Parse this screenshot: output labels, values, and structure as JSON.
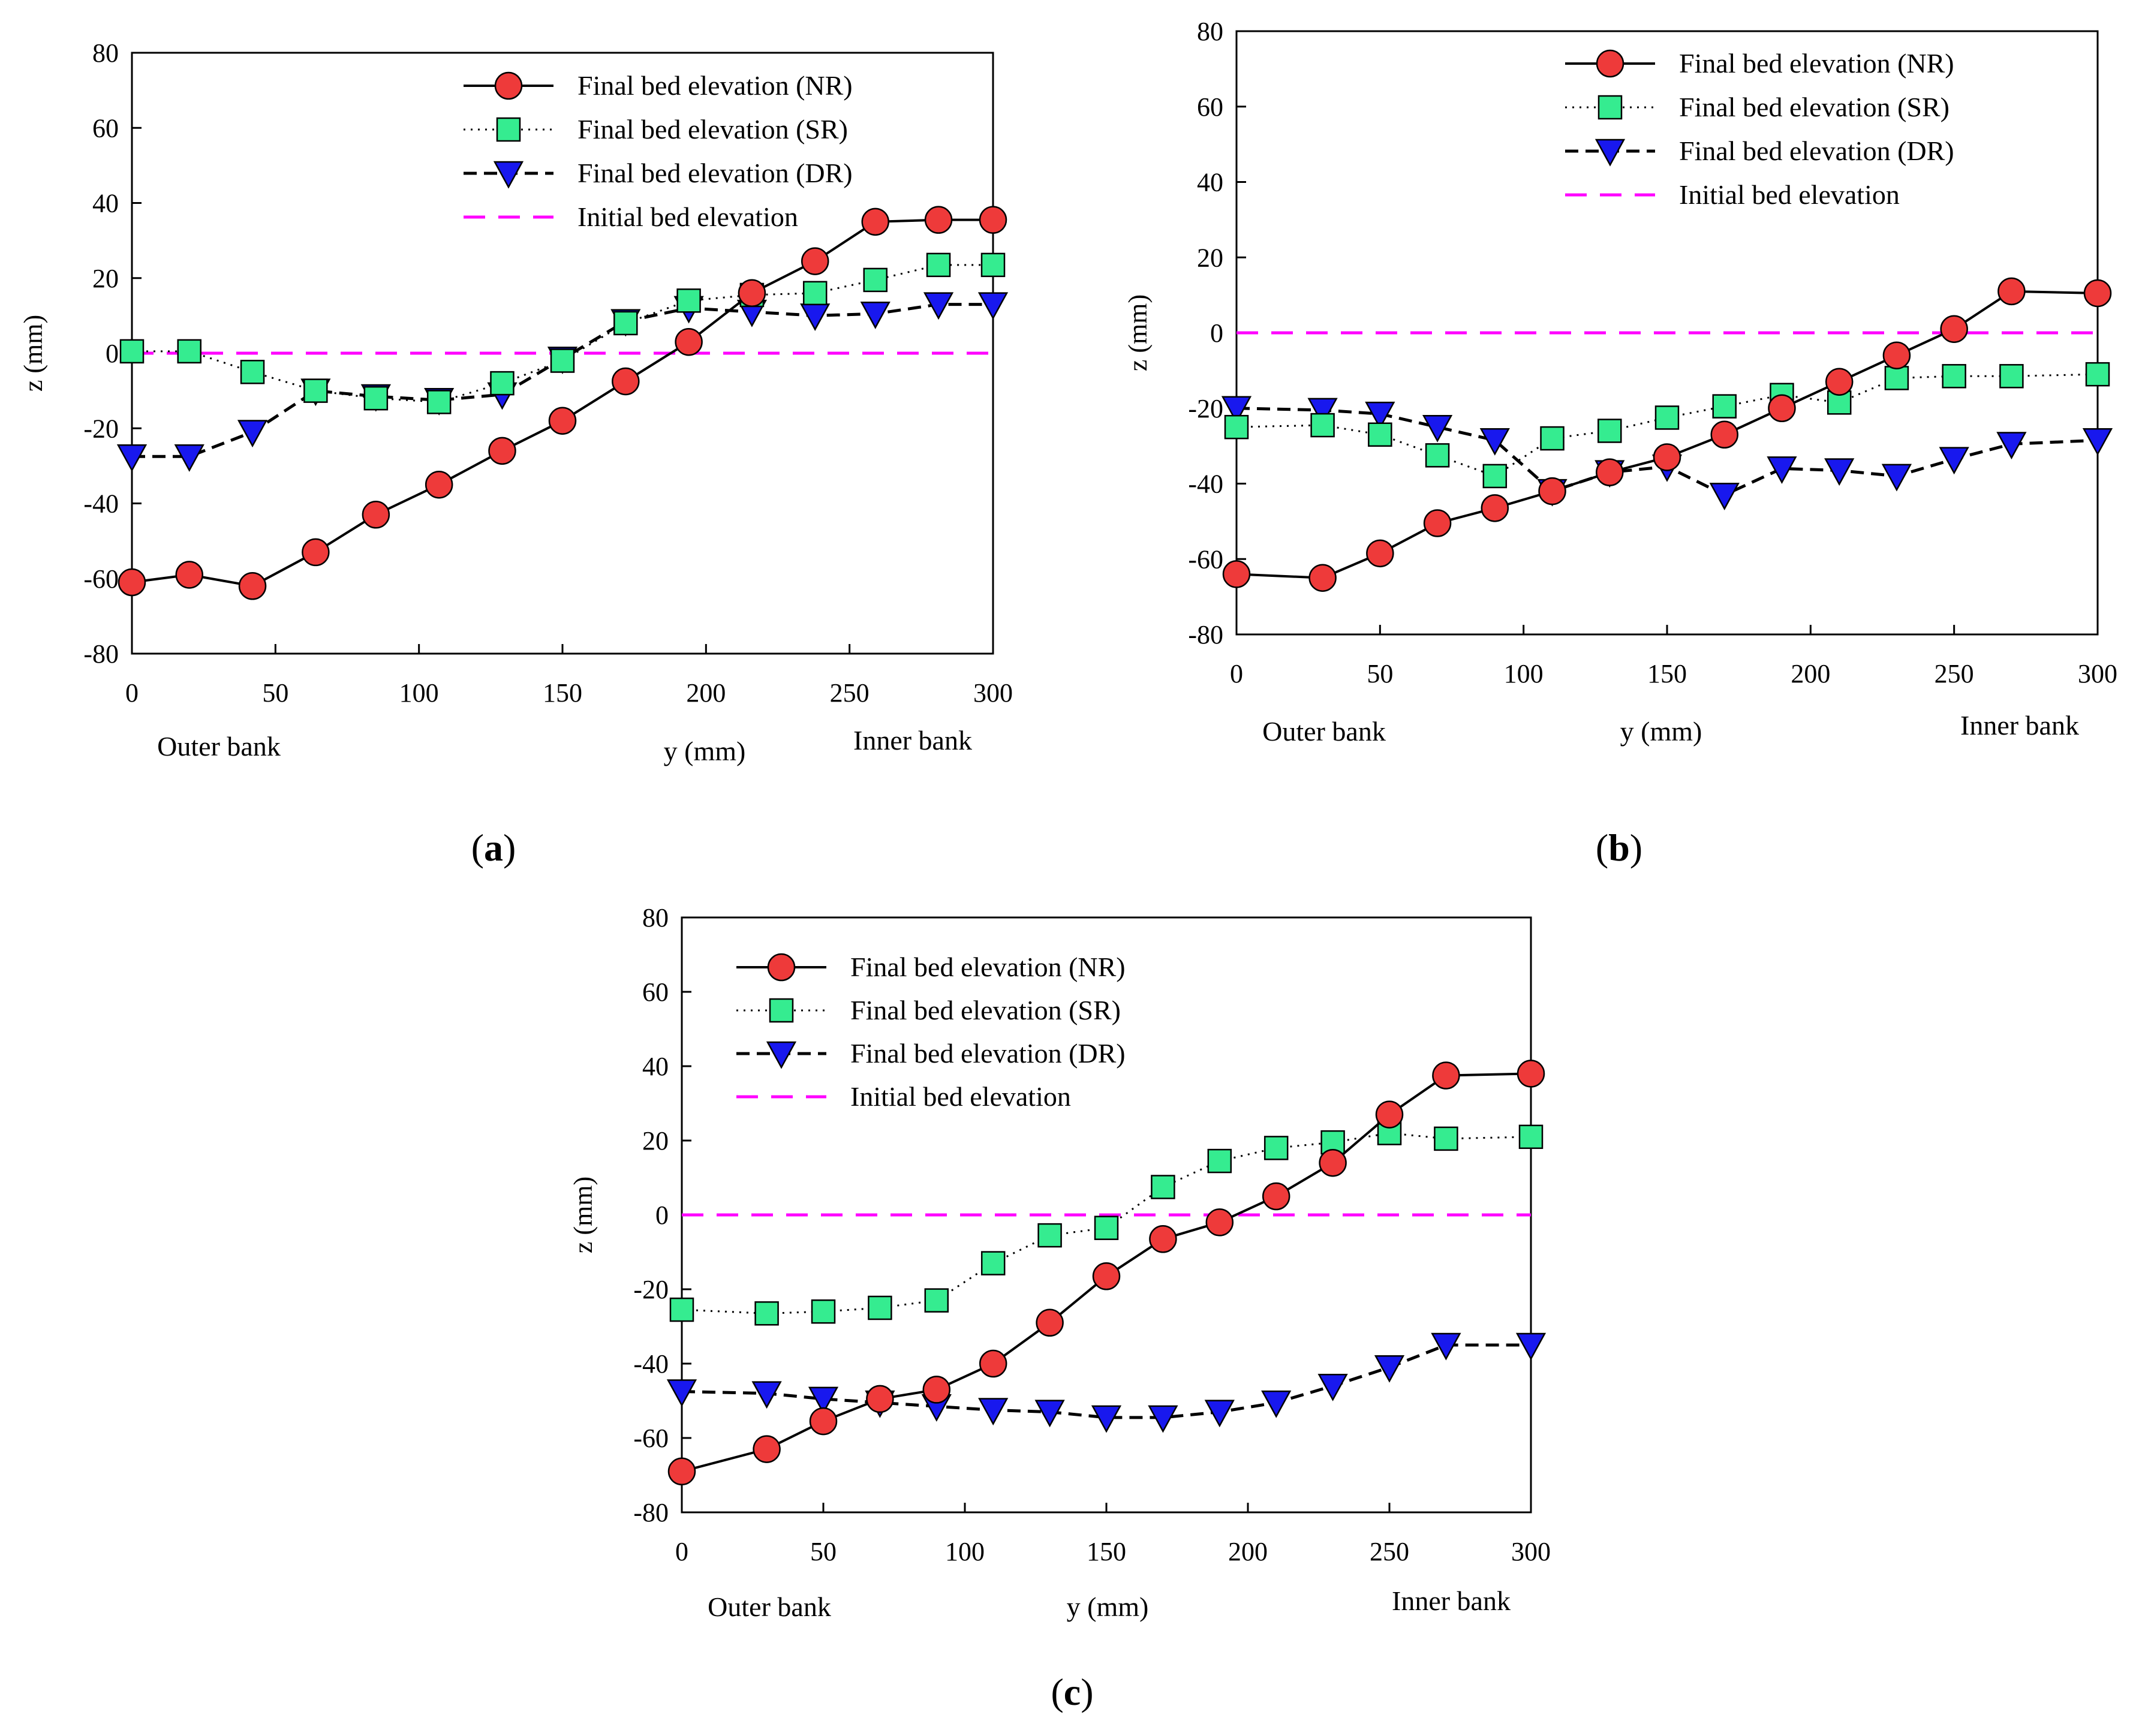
{
  "colors": {
    "nr_fill": "#ee3a3a",
    "sr_fill": "#35ec90",
    "dr_fill": "#1818ee",
    "initial_line": "#ff00ff",
    "axis": "#000000"
  },
  "chart_data": [
    {
      "type": "line",
      "caption": "(a)",
      "xlabel": "y (mm)",
      "ylabel": "z (mm)",
      "xlim": [
        0,
        300
      ],
      "ylim": [
        -80,
        80
      ],
      "xticks": [
        0,
        50,
        100,
        150,
        200,
        250,
        300
      ],
      "yticks": [
        -80,
        -60,
        -40,
        -20,
        0,
        20,
        40,
        60,
        80
      ],
      "bank_labels": {
        "outer": "Outer bank",
        "inner": "Inner bank"
      },
      "legend_position": "top-right",
      "grid": false,
      "series": [
        {
          "name": "Final bed elevation (NR)",
          "style": "nr",
          "x": [
            0,
            20,
            42,
            64,
            85,
            107,
            129,
            150,
            172,
            194,
            216,
            238,
            259,
            281,
            300
          ],
          "y": [
            -61,
            -59,
            -62,
            -53,
            -43,
            -35,
            -26,
            -18,
            -7.5,
            3,
            16,
            24.5,
            35,
            35.5,
            35.5
          ]
        },
        {
          "name": "Final bed elevation (SR)",
          "style": "sr",
          "x": [
            0,
            20,
            42,
            64,
            85,
            107,
            129,
            150,
            172,
            194,
            216,
            238,
            259,
            281,
            300
          ],
          "y": [
            0.5,
            0.5,
            -5,
            -10,
            -12,
            -13,
            -8,
            -2,
            8,
            14,
            15.5,
            16,
            19.5,
            23.5,
            23.5
          ]
        },
        {
          "name": "Final bed elevation (DR)",
          "style": "dr",
          "x": [
            0,
            20,
            42,
            64,
            85,
            107,
            129,
            150,
            172,
            194,
            216,
            238,
            259,
            281,
            300
          ],
          "y": [
            -27.5,
            -27.5,
            -21,
            -10,
            -11.5,
            -12.5,
            -11,
            -1.5,
            8.5,
            12,
            11,
            10,
            10.5,
            13,
            13
          ]
        },
        {
          "name": "Initial bed elevation",
          "style": "initial",
          "x": [
            0,
            300
          ],
          "y": [
            0,
            0
          ]
        }
      ]
    },
    {
      "type": "line",
      "caption": "(b)",
      "xlabel": "y (mm)",
      "ylabel": "z (mm)",
      "xlim": [
        0,
        300
      ],
      "ylim": [
        -80,
        80
      ],
      "xticks": [
        0,
        50,
        100,
        150,
        200,
        250,
        300
      ],
      "yticks": [
        -80,
        -60,
        -40,
        -20,
        0,
        20,
        40,
        60,
        80
      ],
      "bank_labels": {
        "outer": "Outer bank",
        "inner": "Inner bank"
      },
      "legend_position": "top-right",
      "grid": false,
      "series": [
        {
          "name": "Final bed elevation (NR)",
          "style": "nr",
          "x": [
            0,
            30,
            50,
            70,
            90,
            110,
            130,
            150,
            170,
            190,
            210,
            230,
            250,
            270,
            300
          ],
          "y": [
            -64,
            -65,
            -58.5,
            -50.5,
            -46.5,
            -42,
            -37,
            -33,
            -27,
            -20,
            -13,
            -6,
            1,
            11,
            10.5
          ]
        },
        {
          "name": "Final bed elevation (SR)",
          "style": "sr",
          "x": [
            0,
            30,
            50,
            70,
            90,
            110,
            130,
            150,
            170,
            190,
            210,
            230,
            250,
            270,
            300
          ],
          "y": [
            -25,
            -24.5,
            -27,
            -32.5,
            -38,
            -28,
            -26,
            -22.5,
            -19.5,
            -16.5,
            -18.5,
            -12,
            -11.5,
            -11.5,
            -11
          ]
        },
        {
          "name": "Final bed elevation (DR)",
          "style": "dr",
          "x": [
            0,
            30,
            50,
            70,
            90,
            110,
            130,
            150,
            170,
            190,
            210,
            230,
            250,
            270,
            300
          ],
          "y": [
            -20,
            -20.5,
            -21.5,
            -25,
            -28.5,
            -42,
            -37,
            -35.5,
            -43,
            -36,
            -36.5,
            -38,
            -33.5,
            -29.5,
            -28.5
          ]
        },
        {
          "name": "Initial bed elevation",
          "style": "initial",
          "x": [
            0,
            300
          ],
          "y": [
            0,
            0
          ]
        }
      ]
    },
    {
      "type": "line",
      "caption": "(c)",
      "xlabel": "y (mm)",
      "ylabel": "z (mm)",
      "xlim": [
        0,
        300
      ],
      "ylim": [
        -80,
        80
      ],
      "xticks": [
        0,
        50,
        100,
        150,
        200,
        250,
        300
      ],
      "yticks": [
        -80,
        -60,
        -40,
        -20,
        0,
        20,
        40,
        60,
        80
      ],
      "bank_labels": {
        "outer": "Outer bank",
        "inner": "Inner bank"
      },
      "legend_position": "top-left",
      "grid": false,
      "series": [
        {
          "name": "Final bed elevation (NR)",
          "style": "nr",
          "x": [
            0,
            30,
            50,
            70,
            90,
            110,
            130,
            150,
            170,
            190,
            210,
            230,
            250,
            270,
            300
          ],
          "y": [
            -69,
            -63,
            -55.5,
            -49.5,
            -47,
            -40,
            -29,
            -16.5,
            -6.5,
            -2,
            5,
            14,
            27,
            37.5,
            38
          ]
        },
        {
          "name": "Final bed elevation (SR)",
          "style": "sr",
          "x": [
            0,
            30,
            50,
            70,
            90,
            110,
            130,
            150,
            170,
            190,
            210,
            230,
            250,
            270,
            300
          ],
          "y": [
            -25.5,
            -26.5,
            -26,
            -25,
            -23,
            -13,
            -5.5,
            -3.5,
            7.5,
            14.5,
            18,
            19.5,
            22,
            20.5,
            21
          ]
        },
        {
          "name": "Final bed elevation (DR)",
          "style": "dr",
          "x": [
            0,
            30,
            50,
            70,
            90,
            110,
            130,
            150,
            170,
            190,
            210,
            230,
            250,
            270,
            300
          ],
          "y": [
            -47.5,
            -48,
            -49.5,
            -50.5,
            -51.5,
            -52.5,
            -53,
            -54.5,
            -54.5,
            -53,
            -50.5,
            -46,
            -41,
            -35,
            -35
          ]
        },
        {
          "name": "Initial bed elevation",
          "style": "initial",
          "x": [
            0,
            300
          ],
          "y": [
            0,
            0
          ]
        }
      ]
    }
  ]
}
